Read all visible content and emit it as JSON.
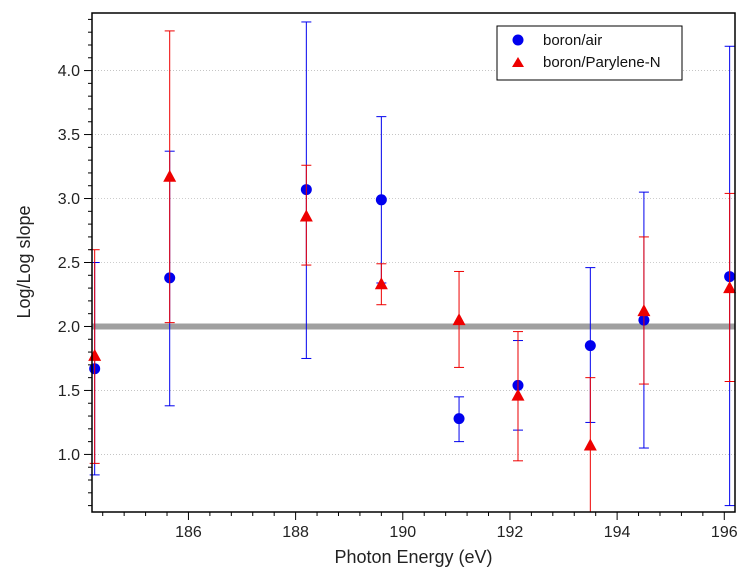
{
  "chart_data": {
    "type": "scatter",
    "title": "",
    "xlabel": "Photon Energy (eV)",
    "ylabel": "Log/Log slope",
    "xlim": [
      184.2,
      196.2
    ],
    "ylim": [
      0.55,
      4.45
    ],
    "xticks": [
      186,
      188,
      190,
      192,
      194,
      196
    ],
    "xtick_labels": [
      "186",
      "188",
      "190",
      "192",
      "194",
      "196"
    ],
    "yticks": [
      1.0,
      1.5,
      2.0,
      2.5,
      3.0,
      3.5,
      4.0
    ],
    "ytick_labels": [
      "1.0",
      "1.5",
      "2.0",
      "2.5",
      "3.0",
      "3.5",
      "4.0"
    ],
    "grid": "horizontal dotted",
    "legend_position": "top-right",
    "reference_line": {
      "y": 2.0,
      "color": "#a0a0a0"
    },
    "series": [
      {
        "name": "boron/air",
        "marker": "circle",
        "color": "#0000ee",
        "points": [
          {
            "x": 184.25,
            "y": 1.67,
            "err_low": 0.84,
            "err_high": 2.5
          },
          {
            "x": 185.65,
            "y": 2.38,
            "err_low": 1.38,
            "err_high": 3.37
          },
          {
            "x": 188.2,
            "y": 3.07,
            "err_low": 1.75,
            "err_high": 4.38
          },
          {
            "x": 189.6,
            "y": 2.99,
            "err_low": 2.34,
            "err_high": 3.64
          },
          {
            "x": 191.05,
            "y": 1.28,
            "err_low": 1.1,
            "err_high": 1.45
          },
          {
            "x": 192.15,
            "y": 1.54,
            "err_low": 1.19,
            "err_high": 1.89
          },
          {
            "x": 193.5,
            "y": 1.85,
            "err_low": 1.25,
            "err_high": 2.46
          },
          {
            "x": 194.5,
            "y": 2.05,
            "err_low": 1.05,
            "err_high": 3.05
          },
          {
            "x": 196.1,
            "y": 2.39,
            "err_low": 0.6,
            "err_high": 4.19
          }
        ]
      },
      {
        "name": "boron/Parylene-N",
        "marker": "triangle",
        "color": "#ee0000",
        "points": [
          {
            "x": 184.25,
            "y": 1.77,
            "err_low": 0.93,
            "err_high": 2.6
          },
          {
            "x": 185.65,
            "y": 3.17,
            "err_low": 2.03,
            "err_high": 4.31
          },
          {
            "x": 188.2,
            "y": 2.86,
            "err_low": 2.48,
            "err_high": 3.26
          },
          {
            "x": 189.6,
            "y": 2.33,
            "err_low": 2.17,
            "err_high": 2.49
          },
          {
            "x": 191.05,
            "y": 2.05,
            "err_low": 1.68,
            "err_high": 2.43
          },
          {
            "x": 192.15,
            "y": 1.46,
            "err_low": 0.95,
            "err_high": 1.96
          },
          {
            "x": 193.5,
            "y": 1.07,
            "err_low": 0.55,
            "err_high": 1.6
          },
          {
            "x": 194.5,
            "y": 2.12,
            "err_low": 1.55,
            "err_high": 2.7
          },
          {
            "x": 196.1,
            "y": 2.3,
            "err_low": 1.57,
            "err_high": 3.04
          }
        ]
      }
    ]
  }
}
